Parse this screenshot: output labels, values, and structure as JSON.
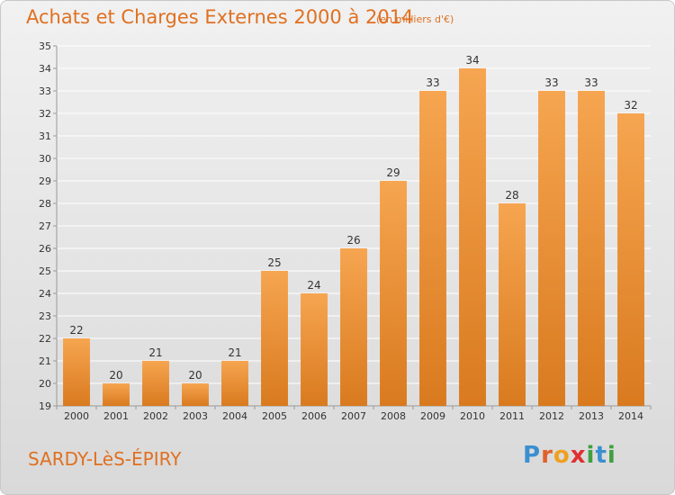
{
  "header": {
    "title": "Achats et Charges Externes 2000 à 2014",
    "subtitle": "(en milliers d'€)"
  },
  "footer": {
    "commune": "SARDY-LèS-ÉPIRY",
    "logo_letters": [
      "P",
      "r",
      "o",
      "x",
      "i",
      "t",
      "i"
    ],
    "logo_colors": [
      "#3a8fd0",
      "#e0602a",
      "#f0a020",
      "#e03030",
      "#40a040",
      "#3a8fd0",
      "#40a040"
    ]
  },
  "colors": {
    "bar_top": "#f6a550",
    "bar_bottom": "#d97a1f",
    "accent": "#e07020"
  },
  "chart_data": {
    "type": "bar",
    "title": "Achats et Charges Externes 2000 à 2014",
    "subtitle": "(en milliers d'€)",
    "categories": [
      "2000",
      "2001",
      "2002",
      "2003",
      "2004",
      "2005",
      "2006",
      "2007",
      "2008",
      "2009",
      "2010",
      "2011",
      "2012",
      "2013",
      "2014"
    ],
    "values": [
      22,
      20,
      21,
      20,
      21,
      25,
      24,
      26,
      29,
      33,
      34,
      28,
      33,
      33,
      32
    ],
    "ylim": [
      19,
      35
    ],
    "yticks": [
      19,
      20,
      21,
      22,
      23,
      24,
      25,
      26,
      27,
      28,
      29,
      30,
      31,
      32,
      33,
      34,
      35
    ],
    "grid": true
  }
}
